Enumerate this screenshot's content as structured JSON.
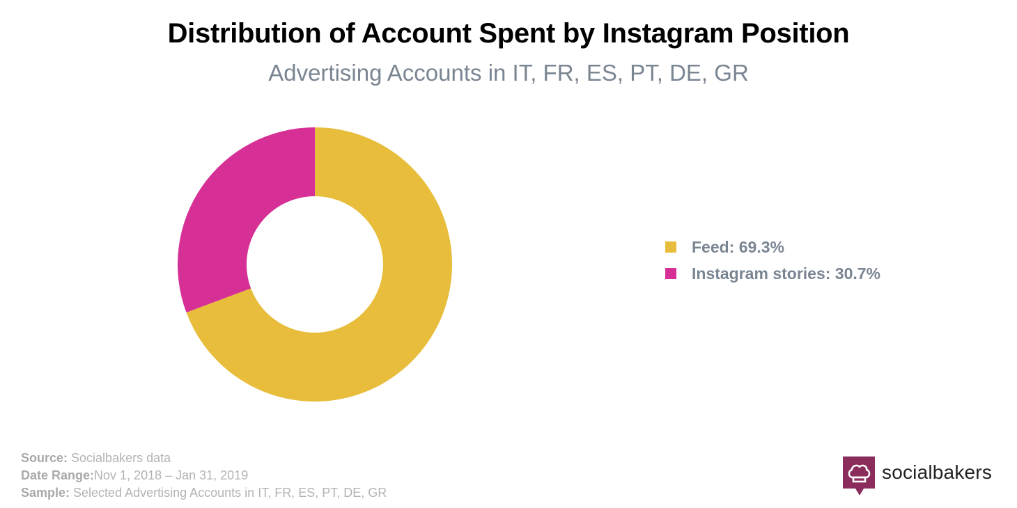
{
  "header": {
    "title": "Distribution of Account Spent by Instagram Position",
    "subtitle": "Advertising Accounts in IT, FR, ES, PT, DE, GR"
  },
  "chart_data": {
    "type": "pie",
    "title": "Distribution of Account Spent by Instagram Position",
    "subtitle": "Advertising Accounts in IT, FR, ES, PT, DE, GR",
    "donut": true,
    "legend_position": "right",
    "series": [
      {
        "name": "Feed",
        "value": 69.3,
        "label": "Feed: 69.3%",
        "color": "#e8bd3c"
      },
      {
        "name": "Instagram stories",
        "value": 30.7,
        "label": "Instagram stories: 30.7%",
        "color": "#d63096"
      }
    ]
  },
  "footer": {
    "source_label": "Source:",
    "source_value": " Socialbakers data",
    "date_label": "Date Range:",
    "date_value": "Nov 1, 2018  – Jan 31, 2019",
    "sample_label": "Sample:",
    "sample_value": " Selected Advertising Accounts in IT, FR, ES, PT, DE, GR"
  },
  "brand": {
    "name": "socialbakers",
    "icon": "chef-hat-icon",
    "color": "#8a2d5c"
  }
}
